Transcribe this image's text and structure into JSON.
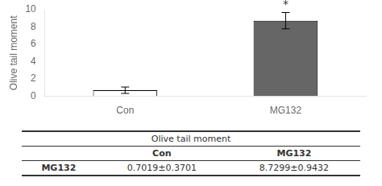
{
  "chart_data": [
    {
      "type": "bar",
      "categories": [
        "Con",
        "MG132"
      ],
      "values": [
        0.7019,
        8.7299
      ],
      "errors": [
        0.3701,
        0.9432
      ],
      "colors": [
        "#ffffff",
        "#666666"
      ],
      "ylabel": "Olive tail moment",
      "ylim": [
        0,
        10
      ],
      "yticks": [
        0,
        2,
        4,
        6,
        8,
        10
      ],
      "grid": false,
      "annotations": [
        {
          "text": "*",
          "category": "MG132"
        }
      ]
    },
    {
      "type": "table",
      "title": "Olive tail moment",
      "categories": [
        "Con",
        "MG132"
      ],
      "series": [
        {
          "name": "MG132",
          "values": [
            0.7019,
            8.7299
          ],
          "errors": [
            0.3701,
            0.9432
          ],
          "value_labels": [
            "0.7019±0.3701",
            "8.7299±0.9432"
          ]
        }
      ]
    }
  ]
}
